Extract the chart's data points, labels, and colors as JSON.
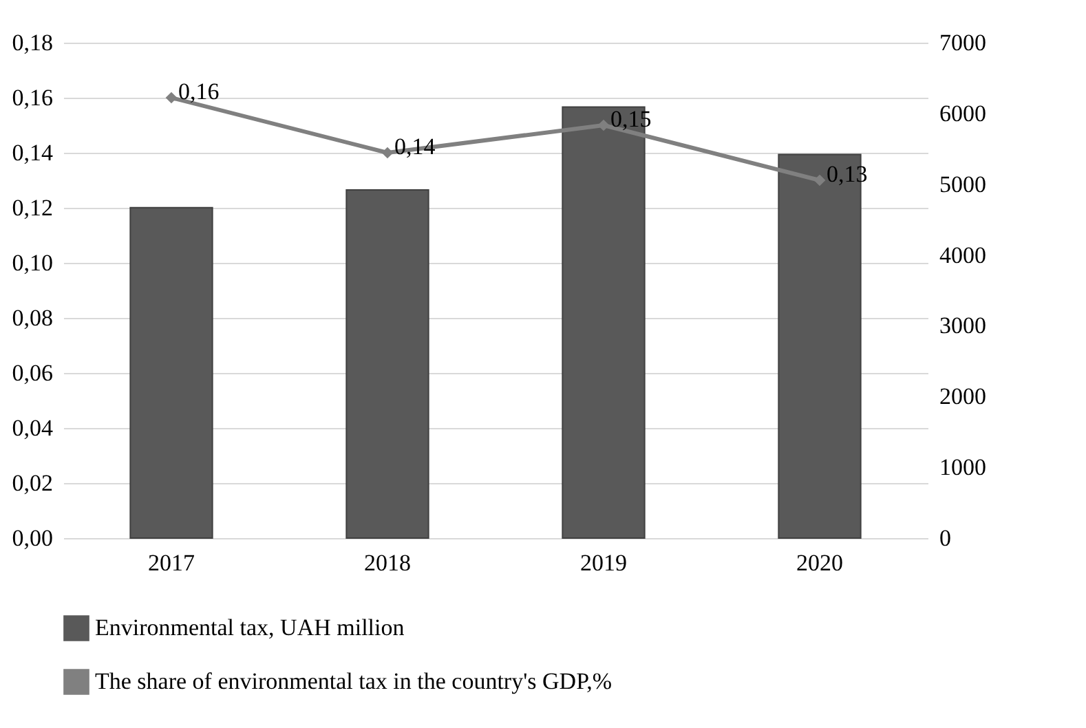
{
  "chart_data": {
    "type": "bar",
    "categories": [
      "2017",
      "2018",
      "2019",
      "2020"
    ],
    "series": [
      {
        "name": "Environmental tax, UAH million",
        "axis": "y2",
        "color": "#595959",
        "values": [
          4670,
          4920,
          6090,
          5420
        ]
      },
      {
        "name": "The share of environmental tax in the country's GDP,%",
        "type": "line",
        "axis": "y",
        "color": "#808080",
        "values": [
          0.16,
          0.14,
          0.15,
          0.13
        ],
        "value_labels": [
          "0,16",
          "0,14",
          "0,15",
          "0,13"
        ]
      }
    ],
    "ylim": [
      0,
      0.18
    ],
    "yticks": [
      {
        "value": 0,
        "label": "0,00"
      },
      {
        "value": 0.02,
        "label": "0,02"
      },
      {
        "value": 0.04,
        "label": "0,04"
      },
      {
        "value": 0.06,
        "label": "0,06"
      },
      {
        "value": 0.08,
        "label": "0,08"
      },
      {
        "value": 0.1,
        "label": "0,10"
      },
      {
        "value": 0.12,
        "label": "0,12"
      },
      {
        "value": 0.14,
        "label": "0,14"
      },
      {
        "value": 0.16,
        "label": "0,16"
      },
      {
        "value": 0.18,
        "label": "0,18"
      }
    ],
    "y2lim": [
      0,
      7000
    ],
    "y2ticks": [
      0,
      1000,
      2000,
      3000,
      4000,
      5000,
      6000,
      7000
    ],
    "grid": "y",
    "legend": "bottom",
    "marker": "diamond",
    "line_style": "solid"
  }
}
